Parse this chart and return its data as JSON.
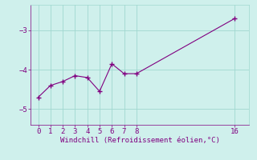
{
  "x": [
    0,
    1,
    2,
    3,
    4,
    5,
    6,
    7,
    8,
    16
  ],
  "y": [
    -4.7,
    -4.4,
    -4.3,
    -4.15,
    -4.2,
    -4.55,
    -3.85,
    -4.1,
    -4.1,
    -2.7
  ],
  "line_color": "#800080",
  "marker": "+",
  "marker_size": 4,
  "marker_lw": 1.0,
  "line_width": 0.8,
  "bg_color": "#cff0ec",
  "grid_color": "#a0d8d0",
  "xlabel": "Windchill (Refroidissement éolien,°C)",
  "xlabel_color": "#800080",
  "xlabel_fontsize": 6.5,
  "tick_color": "#800080",
  "tick_fontsize": 6.5,
  "yticks": [
    -5,
    -4,
    -3
  ],
  "xticks": [
    0,
    1,
    2,
    3,
    4,
    5,
    6,
    7,
    8,
    16
  ],
  "ylim": [
    -5.4,
    -2.35
  ],
  "xlim": [
    -0.6,
    17.2
  ]
}
